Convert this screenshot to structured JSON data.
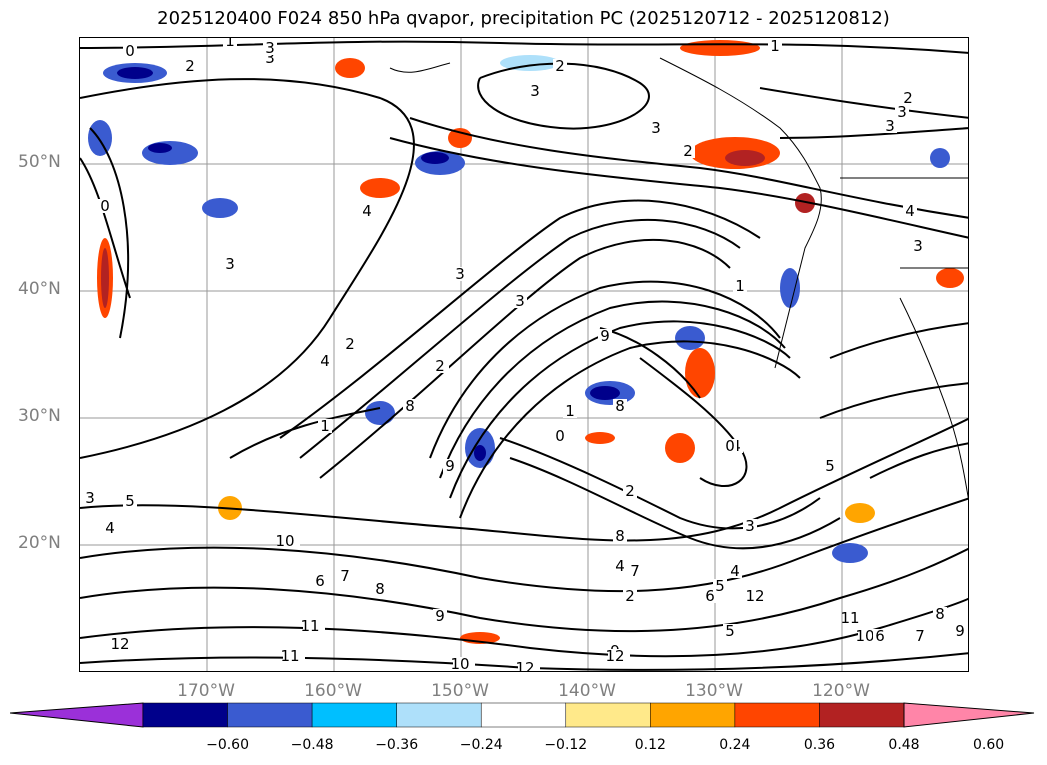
{
  "title": "2025120400 F024 850 hPa qvapor, precipitation PC (2025120712 - 2025120812)",
  "lat_labels": [
    "50°N",
    "40°N",
    "30°N",
    "20°N"
  ],
  "lon_labels": [
    "170°W",
    "160°W",
    "150°W",
    "140°W",
    "130°W",
    "120°W"
  ],
  "colorbar": {
    "colors": [
      "#9b30d9",
      "#00008b",
      "#3a5bd0",
      "#00bfff",
      "#aee0fa",
      "#ffffff",
      "#ffe98a",
      "#ffa500",
      "#ff4500",
      "#b22222",
      "#ff85a8"
    ],
    "ticks": [
      "−0.60",
      "−0.48",
      "−0.36",
      "−0.24",
      "−0.12",
      "0.12",
      "0.24",
      "0.36",
      "0.48",
      "0.60"
    ]
  },
  "contour_labels": [
    "0",
    "2",
    "3",
    "1",
    "3",
    "2",
    "3",
    "3",
    "1",
    "2",
    "3",
    "3",
    "2",
    "4",
    "4",
    "3",
    "3",
    "3",
    "2",
    "4",
    "6",
    "3",
    "2",
    "8",
    "9",
    "8",
    "4",
    "1",
    "0",
    "5",
    "9",
    "2",
    "3",
    "4",
    "5",
    "6",
    "7",
    "8",
    "9",
    "10",
    "11",
    "12",
    "11",
    "10",
    "12",
    "9",
    "8",
    "7",
    "6",
    "5",
    "4",
    "3",
    "12",
    "11",
    "10",
    "9",
    "8",
    "7",
    "6",
    "5",
    "4",
    "2",
    "0",
    "0",
    "1",
    "1",
    "12"
  ]
}
